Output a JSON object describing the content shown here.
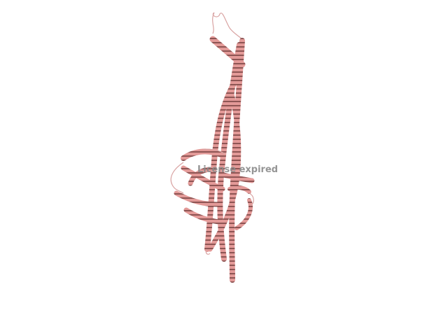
{
  "scene": {
    "subject": "protein-ribbon-model",
    "colors": {
      "background": "#ffffff",
      "helix_light": "#e39a98",
      "helix_mid": "#c97a78",
      "helix_dark": "#8e5554",
      "loop": "#d9a3a2"
    }
  },
  "watermark": {
    "text": "License expired"
  }
}
